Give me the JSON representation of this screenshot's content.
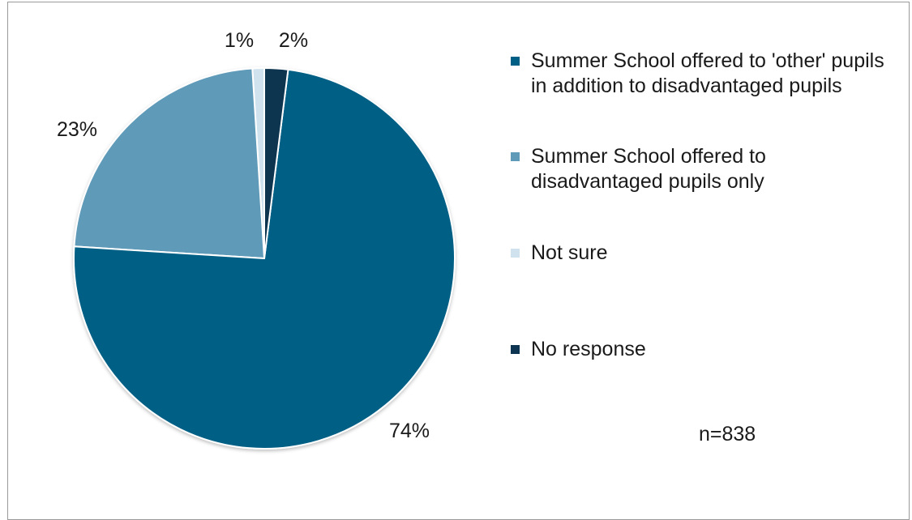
{
  "chart_data": {
    "type": "pie",
    "slices": [
      {
        "label": "Summer School offered to 'other' pupils in addition to disadvantaged pupils",
        "value": 74,
        "display": "74%",
        "color": "#005f85"
      },
      {
        "label": "Summer School offered to disadvantaged pupils only",
        "value": 23,
        "display": "23%",
        "color": "#5f9ab8"
      },
      {
        "label": "Not sure",
        "value": 1,
        "display": "1%",
        "color": "#d0e2ee"
      },
      {
        "label": "No response",
        "value": 2,
        "display": "2%",
        "color": "#0d3450"
      }
    ],
    "note": "n=838",
    "legend_position": "right",
    "start": "top",
    "direction": "counter-clockwise"
  }
}
